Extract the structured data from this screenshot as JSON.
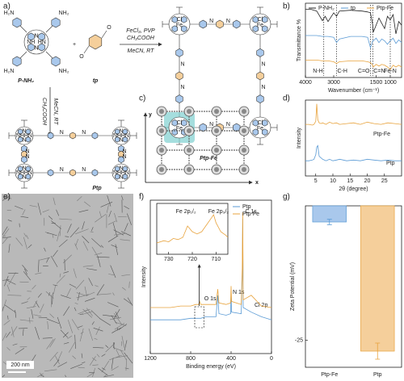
{
  "panel_labels": [
    "a)",
    "b)",
    "c)",
    "d)",
    "e)",
    "f)",
    "g)"
  ],
  "scheme": {
    "monomer": "P-NH₂",
    "amine": "NH₂",
    "amine_left": "H₂N",
    "aldehyde": "tp",
    "oxygen": "O",
    "plus": "+",
    "reagents_fe": [
      "FeCl₃, PVP",
      "CH₃COOH",
      "MeCN, RT"
    ],
    "reagents": [
      "CH₃COOH",
      "MeCN, RT"
    ],
    "product_fe": "Ptp-Fe",
    "product": "Ptp",
    "imine": "N",
    "core": {
      "nh": "NH",
      "hn": "HN",
      "n": "N",
      "fe": "Fe",
      "cl": "Cl"
    }
  },
  "structure": {
    "x": "x",
    "y": "y"
  },
  "tem": {
    "scale": "200 nm"
  },
  "chart_data": [
    {
      "type": "line",
      "xlabel": "Wavenumber (cm⁻¹)",
      "ylabel": "Transmittance %",
      "x": [
        4000,
        3800,
        3600,
        3400,
        3300,
        3200,
        3000,
        2900,
        2800,
        2400,
        2000,
        1800,
        1700,
        1620,
        1600,
        1500,
        1400,
        1300,
        1200,
        1100,
        1000,
        900,
        800,
        700,
        600
      ],
      "series": [
        {
          "name": "P-NH₂",
          "color": "#222222",
          "values": [
            88,
            88,
            86,
            75,
            80,
            74,
            84,
            80,
            86,
            87,
            86,
            85,
            84,
            70,
            62,
            70,
            78,
            72,
            66,
            80,
            76,
            82,
            60,
            74,
            70
          ]
        },
        {
          "name": "tp",
          "color": "#5b9bd5",
          "values": [
            58,
            58,
            58,
            57,
            57,
            57,
            56,
            50,
            54,
            57,
            57,
            56,
            44,
            52,
            52,
            55,
            50,
            54,
            52,
            48,
            52,
            55,
            49,
            53,
            50
          ]
        },
        {
          "name": "Ptp-Fe",
          "color": "#e8a33d",
          "values": [
            30,
            30,
            30,
            29,
            29,
            29,
            28,
            26,
            28,
            29,
            29,
            28,
            27,
            24,
            22,
            25,
            23,
            25,
            24,
            22,
            19,
            24,
            22,
            24,
            22
          ]
        }
      ],
      "xlim": [
        4000,
        600
      ],
      "xticks": [
        4000,
        3000,
        1500,
        1000
      ],
      "ylim": [
        10,
        95
      ],
      "annotations": [
        {
          "text": "N-H",
          "x": 3350
        },
        {
          "text": "C-H",
          "x": 2900
        },
        {
          "text": "C=O",
          "x": 1700
        },
        {
          "text": "C=N",
          "x": 1620
        },
        {
          "text": "Fe-N",
          "x": 1000
        }
      ]
    },
    {
      "type": "line",
      "xlabel": "2θ (degree)",
      "ylabel": "Intensity",
      "x": [
        2,
        3,
        4,
        4.5,
        5,
        5.3,
        5.6,
        6,
        6.5,
        7,
        8,
        9,
        10,
        11,
        12,
        14,
        16,
        18,
        20,
        22,
        24,
        26,
        28,
        30
      ],
      "series": [
        {
          "name": "Ptp-Fe",
          "color": "#e8a33d",
          "values": [
            68,
            68,
            67,
            68,
            72,
            95,
            74,
            70,
            69,
            70,
            68,
            71,
            69,
            70,
            68,
            69,
            70,
            68,
            71,
            69,
            68,
            70,
            69,
            68
          ]
        },
        {
          "name": "Ptp",
          "color": "#5b9bd5",
          "values": [
            20,
            20,
            21,
            22,
            28,
            38,
            40,
            26,
            24,
            22,
            20,
            22,
            20,
            21,
            22,
            20,
            21,
            20,
            22,
            21,
            20,
            21,
            20,
            20
          ]
        }
      ],
      "xlim": [
        2,
        30
      ],
      "xticks": [
        5,
        10,
        15,
        20,
        25
      ],
      "ylim": [
        0,
        100
      ]
    },
    {
      "type": "line",
      "xlabel": "Binding energy (eV)",
      "ylabel": "Intensity",
      "x": [
        1200,
        1100,
        1000,
        900,
        800,
        750,
        720,
        711,
        700,
        650,
        600,
        550,
        532,
        520,
        450,
        405,
        400,
        395,
        300,
        290,
        285,
        280,
        200,
        100,
        0
      ],
      "series": [
        {
          "name": "Ptp",
          "color": "#5b9bd5",
          "values": [
            22,
            22,
            22,
            22,
            23,
            23,
            23,
            23,
            23,
            24,
            24,
            24,
            38,
            26,
            25,
            26,
            40,
            27,
            26,
            50,
            88,
            30,
            27,
            24,
            22
          ]
        },
        {
          "name": "Ptp-Fe",
          "color": "#e8a33d",
          "values": [
            30,
            30,
            30,
            31,
            31,
            32,
            32,
            34,
            32,
            32,
            32,
            32,
            42,
            33,
            32,
            33,
            44,
            34,
            32,
            55,
            92,
            35,
            38,
            31,
            30
          ]
        }
      ],
      "xlim": [
        1200,
        0
      ],
      "xticks": [
        1200,
        800,
        400,
        0
      ],
      "ylim": [
        0,
        100
      ],
      "annotations": [
        {
          "text": "O 1s",
          "x": 532
        },
        {
          "text": "N 1s",
          "x": 400
        },
        {
          "text": "C 1s",
          "x": 285
        },
        {
          "text": "Cl 2p",
          "x": 200
        }
      ]
    },
    {
      "type": "line",
      "x": [
        735,
        732,
        730,
        728,
        726,
        724,
        722,
        720,
        718,
        716,
        714,
        712,
        711,
        710,
        708,
        706,
        705
      ],
      "series": [
        {
          "color": "#e8a33d",
          "values": [
            40,
            42,
            41,
            44,
            43,
            45,
            55,
            50,
            48,
            50,
            56,
            62,
            65,
            58,
            50,
            47,
            45
          ]
        }
      ],
      "xlim": [
        735,
        705
      ],
      "xticks": [
        730,
        720,
        710
      ],
      "ylim": [
        30,
        75
      ],
      "annotations": [
        {
          "text": "Fe 2p₁/₂",
          "x": 722
        },
        {
          "text": "Fe 2p₃/₂",
          "x": 711
        }
      ]
    },
    {
      "type": "bar",
      "ylabel": "Zeta Potential (mV)",
      "categories": [
        "Ptp-Fe",
        "Ptp"
      ],
      "values": [
        -3,
        -27
      ],
      "errors": [
        0.5,
        1.5
      ],
      "colors": [
        "#a9c8ec",
        "#f5cf9b"
      ],
      "edge_colors": [
        "#5b9bd5",
        "#e8a33d"
      ],
      "ylim": [
        -30,
        0
      ],
      "yticks": [
        -25
      ]
    }
  ]
}
